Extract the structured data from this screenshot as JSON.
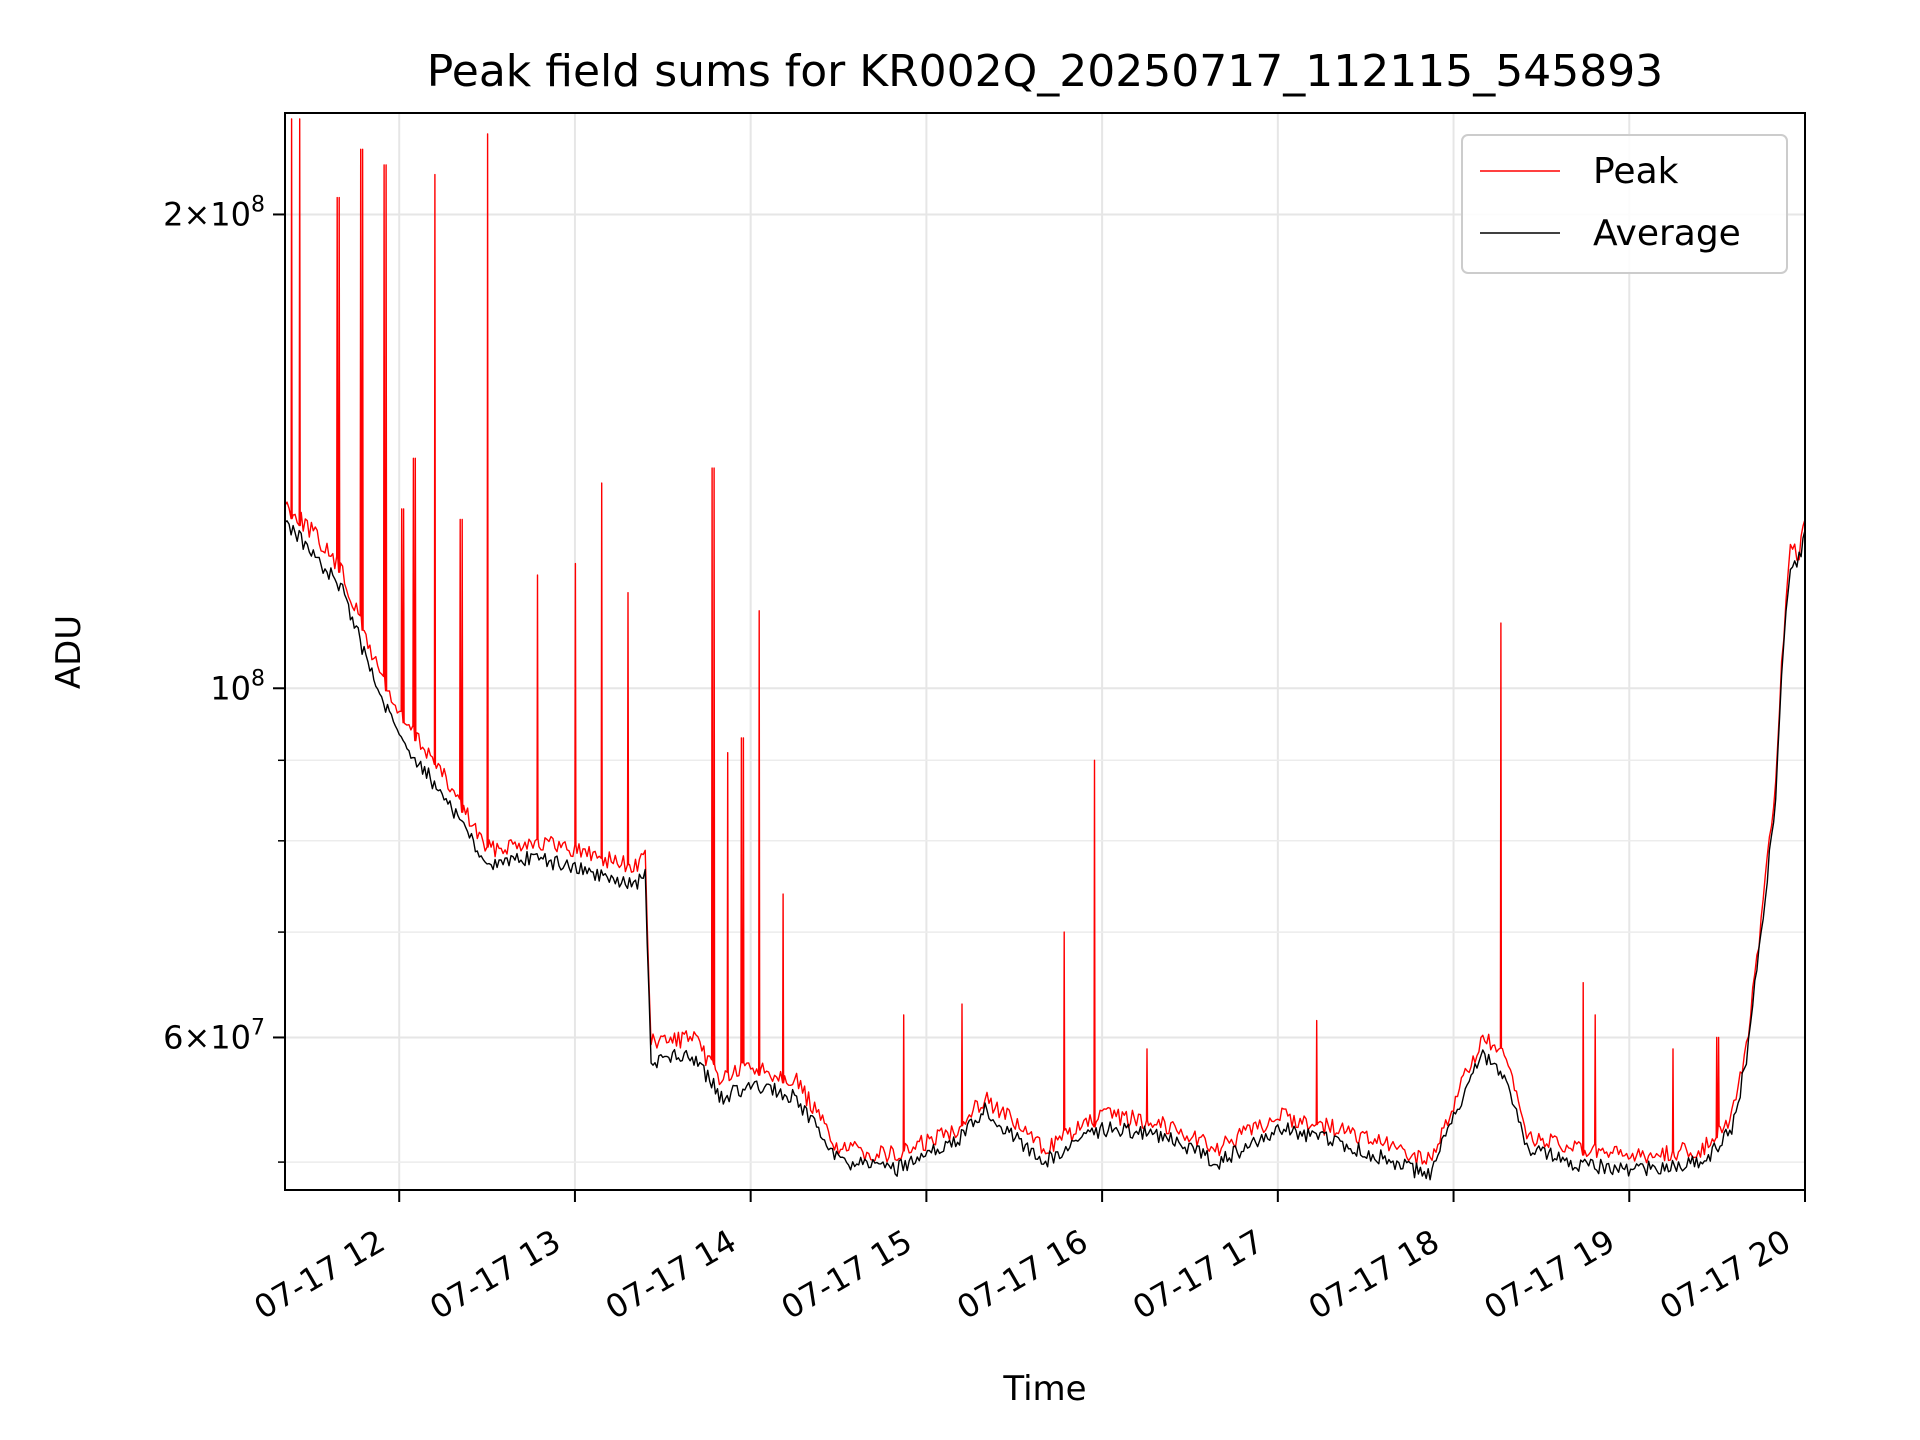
{
  "chart_data": {
    "type": "line",
    "title": "Peak field sums for KR002Q_20250717_112115_545893",
    "xlabel": "Time",
    "ylabel": "ADU",
    "x_axis": {
      "kind": "time",
      "range": [
        "2025-07-17T11:21",
        "2025-07-17T20:00"
      ],
      "ticks": [
        {
          "t": "2025-07-17T12:00",
          "label": "07-17 12"
        },
        {
          "t": "2025-07-17T13:00",
          "label": "07-17 13"
        },
        {
          "t": "2025-07-17T14:00",
          "label": "07-17 14"
        },
        {
          "t": "2025-07-17T15:00",
          "label": "07-17 15"
        },
        {
          "t": "2025-07-17T16:00",
          "label": "07-17 16"
        },
        {
          "t": "2025-07-17T17:00",
          "label": "07-17 17"
        },
        {
          "t": "2025-07-17T18:00",
          "label": "07-17 18"
        },
        {
          "t": "2025-07-17T19:00",
          "label": "07-17 19"
        },
        {
          "t": "2025-07-17T20:00",
          "label": "07-17 20"
        }
      ]
    },
    "y_axis": {
      "scale": "log",
      "range": [
        48000000,
        232000000
      ],
      "major_ticks": [
        {
          "value": 60000000,
          "mant": "6",
          "exp": "7"
        },
        {
          "value": 100000000,
          "mant": "",
          "exp": "8"
        },
        {
          "value": 200000000,
          "mant": "2",
          "exp": "8"
        }
      ],
      "minor_ticks": [
        50000000,
        70000000,
        80000000,
        90000000
      ]
    },
    "grid": true,
    "legend": {
      "position": "top-right",
      "entries": [
        "Peak",
        "Average"
      ]
    },
    "series": [
      {
        "name": "Average",
        "color": "#000000",
        "points": [
          [
            "2025-07-17T11:21",
            128000000
          ],
          [
            "2025-07-17T11:30",
            122000000
          ],
          [
            "2025-07-17T11:40",
            116000000
          ],
          [
            "2025-07-17T11:50",
            103000000
          ],
          [
            "2025-07-17T12:00",
            93000000
          ],
          [
            "2025-07-17T12:10",
            88000000
          ],
          [
            "2025-07-17T12:20",
            83000000
          ],
          [
            "2025-07-17T12:30",
            77000000
          ],
          [
            "2025-07-17T12:45",
            78000000
          ],
          [
            "2025-07-17T13:00",
            77000000
          ],
          [
            "2025-07-17T13:20",
            75000000
          ],
          [
            "2025-07-17T13:24",
            76000000
          ],
          [
            "2025-07-17T13:26",
            58000000
          ],
          [
            "2025-07-17T13:40",
            58500000
          ],
          [
            "2025-07-17T13:50",
            55000000
          ],
          [
            "2025-07-17T14:00",
            56000000
          ],
          [
            "2025-07-17T14:15",
            55000000
          ],
          [
            "2025-07-17T14:30",
            50000000
          ],
          [
            "2025-07-17T14:50",
            49500000
          ],
          [
            "2025-07-17T15:10",
            51500000
          ],
          [
            "2025-07-17T15:20",
            54000000
          ],
          [
            "2025-07-17T15:40",
            50000000
          ],
          [
            "2025-07-17T16:00",
            52500000
          ],
          [
            "2025-07-17T16:20",
            52000000
          ],
          [
            "2025-07-17T16:40",
            50000000
          ],
          [
            "2025-07-17T17:00",
            52500000
          ],
          [
            "2025-07-17T17:20",
            51500000
          ],
          [
            "2025-07-17T17:40",
            50000000
          ],
          [
            "2025-07-17T17:52",
            49000000
          ],
          [
            "2025-07-17T18:00",
            53500000
          ],
          [
            "2025-07-17T18:10",
            58500000
          ],
          [
            "2025-07-17T18:18",
            56500000
          ],
          [
            "2025-07-17T18:25",
            51000000
          ],
          [
            "2025-07-17T18:40",
            50000000
          ],
          [
            "2025-07-17T18:55",
            49500000
          ],
          [
            "2025-07-17T19:10",
            49500000
          ],
          [
            "2025-07-17T19:25",
            50000000
          ],
          [
            "2025-07-17T19:35",
            52500000
          ],
          [
            "2025-07-17T19:40",
            58000000
          ],
          [
            "2025-07-17T19:45",
            70000000
          ],
          [
            "2025-07-17T19:50",
            85000000
          ],
          [
            "2025-07-17T19:52",
            102000000
          ],
          [
            "2025-07-17T19:55",
            120000000
          ],
          [
            "2025-07-17T19:58",
            121000000
          ],
          [
            "2025-07-17T20:00",
            126000000
          ]
        ]
      },
      {
        "name": "Peak",
        "color": "#ff0000",
        "points": [
          [
            "2025-07-17T11:21",
            131000000
          ],
          [
            "2025-07-17T11:30",
            126000000
          ],
          [
            "2025-07-17T11:40",
            119000000
          ],
          [
            "2025-07-17T11:50",
            106000000
          ],
          [
            "2025-07-17T12:00",
            96000000
          ],
          [
            "2025-07-17T12:10",
            91000000
          ],
          [
            "2025-07-17T12:20",
            85000000
          ],
          [
            "2025-07-17T12:30",
            79000000
          ],
          [
            "2025-07-17T12:45",
            80000000
          ],
          [
            "2025-07-17T13:00",
            79000000
          ],
          [
            "2025-07-17T13:20",
            77000000
          ],
          [
            "2025-07-17T13:24",
            78000000
          ],
          [
            "2025-07-17T13:26",
            59500000
          ],
          [
            "2025-07-17T13:40",
            60000000
          ],
          [
            "2025-07-17T13:50",
            56500000
          ],
          [
            "2025-07-17T14:00",
            57500000
          ],
          [
            "2025-07-17T14:15",
            56500000
          ],
          [
            "2025-07-17T14:30",
            51000000
          ],
          [
            "2025-07-17T14:50",
            50500000
          ],
          [
            "2025-07-17T15:10",
            52500000
          ],
          [
            "2025-07-17T15:20",
            55000000
          ],
          [
            "2025-07-17T15:40",
            51000000
          ],
          [
            "2025-07-17T16:00",
            53500000
          ],
          [
            "2025-07-17T16:20",
            53000000
          ],
          [
            "2025-07-17T16:40",
            51000000
          ],
          [
            "2025-07-17T17:00",
            53500000
          ],
          [
            "2025-07-17T17:20",
            52500000
          ],
          [
            "2025-07-17T17:40",
            51000000
          ],
          [
            "2025-07-17T17:52",
            50000000
          ],
          [
            "2025-07-17T18:00",
            54500000
          ],
          [
            "2025-07-17T18:10",
            60000000
          ],
          [
            "2025-07-17T18:18",
            58000000
          ],
          [
            "2025-07-17T18:25",
            52000000
          ],
          [
            "2025-07-17T18:40",
            51000000
          ],
          [
            "2025-07-17T18:55",
            50500000
          ],
          [
            "2025-07-17T19:10",
            50500000
          ],
          [
            "2025-07-17T19:25",
            51000000
          ],
          [
            "2025-07-17T19:35",
            53500000
          ],
          [
            "2025-07-17T19:40",
            59000000
          ],
          [
            "2025-07-17T19:45",
            71000000
          ],
          [
            "2025-07-17T19:50",
            87000000
          ],
          [
            "2025-07-17T19:52",
            104000000
          ],
          [
            "2025-07-17T19:55",
            122000000
          ],
          [
            "2025-07-17T19:58",
            122000000
          ],
          [
            "2025-07-17T20:00",
            128000000
          ]
        ],
        "spikes": [
          [
            "2025-07-17T11:23",
            230000000
          ],
          [
            "2025-07-17T11:26",
            230000000
          ],
          [
            "2025-07-17T11:39",
            205000000
          ],
          [
            "2025-07-17T11:47",
            220000000
          ],
          [
            "2025-07-17T11:55",
            215000000
          ],
          [
            "2025-07-17T12:01",
            130000000
          ],
          [
            "2025-07-17T12:05",
            140000000
          ],
          [
            "2025-07-17T12:12",
            212000000
          ],
          [
            "2025-07-17T12:21",
            128000000
          ],
          [
            "2025-07-17T12:30",
            225000000
          ],
          [
            "2025-07-17T12:47",
            118000000
          ],
          [
            "2025-07-17T13:00",
            120000000
          ],
          [
            "2025-07-17T13:09",
            135000000
          ],
          [
            "2025-07-17T13:18",
            115000000
          ],
          [
            "2025-07-17T13:47",
            138000000
          ],
          [
            "2025-07-17T13:52",
            91000000
          ],
          [
            "2025-07-17T13:57",
            93000000
          ],
          [
            "2025-07-17T14:03",
            112000000
          ],
          [
            "2025-07-17T14:11",
            74000000
          ],
          [
            "2025-07-17T14:52",
            62000000
          ],
          [
            "2025-07-17T15:12",
            63000000
          ],
          [
            "2025-07-17T15:47",
            70000000
          ],
          [
            "2025-07-17T15:57",
            90000000
          ],
          [
            "2025-07-17T16:15",
            59000000
          ],
          [
            "2025-07-17T17:13",
            61500000
          ],
          [
            "2025-07-17T18:16",
            110000000
          ],
          [
            "2025-07-17T18:44",
            65000000
          ],
          [
            "2025-07-17T18:48",
            62000000
          ],
          [
            "2025-07-17T19:15",
            59000000
          ],
          [
            "2025-07-17T19:30",
            60000000
          ]
        ]
      }
    ]
  }
}
